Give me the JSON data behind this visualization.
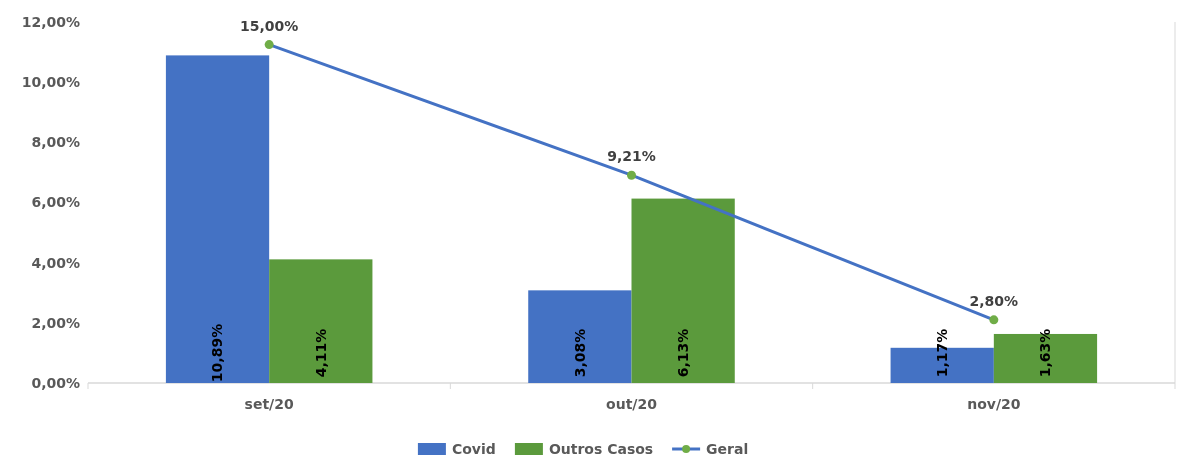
{
  "chart_data": {
    "type": "bar",
    "categories": [
      "set/20",
      "out/20",
      "nov/20"
    ],
    "series": [
      {
        "name": "Covid",
        "color": "#4472c4",
        "values": [
          10.89,
          3.08,
          1.17
        ],
        "value_labels": [
          "10,89%",
          "3,08%",
          "1,17%"
        ]
      },
      {
        "name": "Outros Casos",
        "color": "#5b9a3c",
        "values": [
          4.11,
          6.13,
          1.63
        ],
        "value_labels": [
          "4,11%",
          "6,13%",
          "1,63%"
        ]
      },
      {
        "name": "Geral",
        "type": "line",
        "axis": "y2",
        "color": "#4472c4",
        "colors": [
          "#70ad47",
          "#70ad47",
          "#70ad47"
        ],
        "values": [
          15.0,
          9.21,
          2.8
        ],
        "value_labels": [
          "15,00%",
          "9,21%",
          "2,80%"
        ]
      }
    ],
    "ylim": [
      0,
      12
    ],
    "yticks": [
      {
        "value": 0,
        "label": "0,00%"
      },
      {
        "value": 2,
        "label": "2,00%"
      },
      {
        "value": 4,
        "label": "4,00%"
      },
      {
        "value": 6,
        "label": "6,00%"
      },
      {
        "value": 8,
        "label": "8,00%"
      },
      {
        "value": 10,
        "label": "10,00%"
      },
      {
        "value": 12,
        "label": "12,00%"
      }
    ],
    "y2lim": [
      0,
      16
    ],
    "marker": "circle",
    "line_style": "solid",
    "legend": "bottom",
    "grid": false
  }
}
